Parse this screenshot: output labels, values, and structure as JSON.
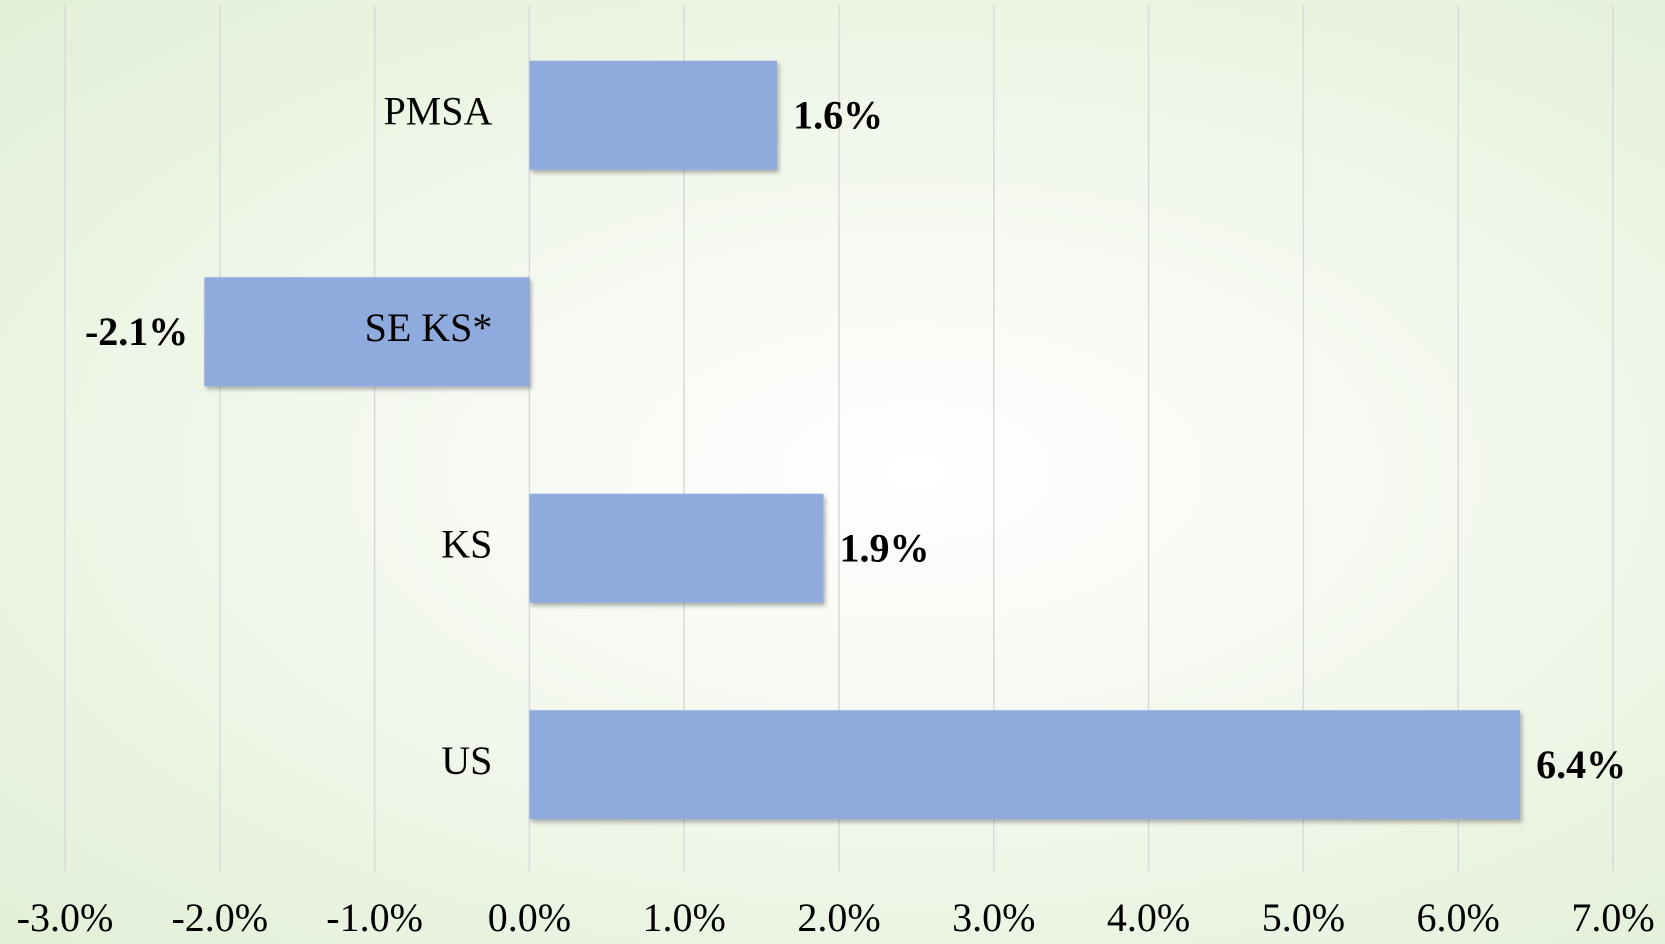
{
  "chart_data": {
    "type": "bar",
    "orientation": "horizontal",
    "categories": [
      "PMSA",
      "SE KS*",
      "KS",
      "US"
    ],
    "values": [
      1.6,
      -2.1,
      1.9,
      6.4
    ],
    "value_labels": [
      "1.6%",
      "-2.1%",
      "1.9%",
      "6.4%"
    ],
    "color": "#8faadc",
    "xlim": [
      -3,
      7
    ],
    "xticks": [
      {
        "value": -3,
        "label": "-3.0%"
      },
      {
        "value": -2,
        "label": "-2.0%"
      },
      {
        "value": -1,
        "label": "-1.0%"
      },
      {
        "value": 0,
        "label": "0.0%"
      },
      {
        "value": 1,
        "label": "1.0%"
      },
      {
        "value": 2,
        "label": "2.0%"
      },
      {
        "value": 3,
        "label": "3.0%"
      },
      {
        "value": 4,
        "label": "4.0%"
      },
      {
        "value": 5,
        "label": "5.0%"
      },
      {
        "value": 6,
        "label": "6.0%"
      },
      {
        "value": 7,
        "label": "7.0%"
      }
    ],
    "grid": true
  }
}
